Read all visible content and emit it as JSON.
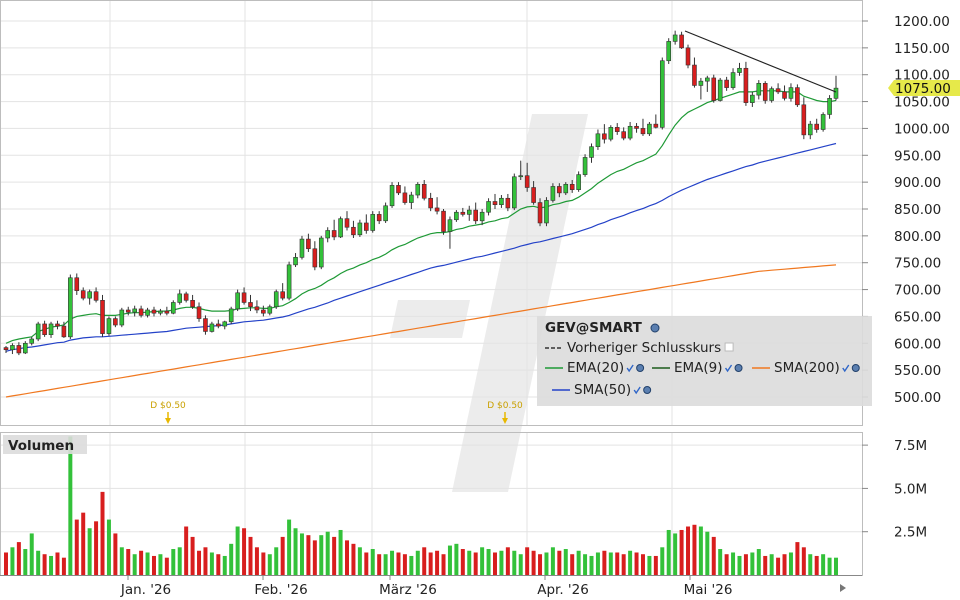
{
  "chart_data": [
    {
      "type": "candlestick",
      "title": "GEV@SMART",
      "x_axis_labels": [
        "Jan. '26",
        "Feb. '26",
        "März '26",
        "Apr. '26",
        "Mai '26"
      ],
      "y_ticks": [
        "1200.00",
        "1150.00",
        "1100.00",
        "1050.00",
        "1000.00",
        "950.00",
        "900.00",
        "850.00",
        "800.00",
        "750.00",
        "700.00",
        "650.00",
        "600.00",
        "550.00",
        "500.00"
      ],
      "y_range": [
        475,
        1215
      ],
      "last_price": "1075.00",
      "legend_placement": "bottom-right",
      "legend": [
        {
          "label": "Vorheriger Schlusskurs",
          "style": "dashed",
          "color": "#333333"
        },
        {
          "label": "EMA(20)",
          "color": "#1f9a36"
        },
        {
          "label": "EMA(9)",
          "color": "#1c5b1c"
        },
        {
          "label": "SMA(200)",
          "color": "#f07820"
        },
        {
          "label": "SMA(50)",
          "color": "#2442c8"
        }
      ],
      "dividends": [
        {
          "label": "D $0.50",
          "date": "Jan. '26"
        },
        {
          "label": "D $0.50",
          "date": "März '26"
        }
      ],
      "trendline_points": [
        [
          1185,
          1070
        ]
      ],
      "candles": [
        [
          592,
          595,
          582,
          588
        ],
        [
          588,
          600,
          580,
          596
        ],
        [
          596,
          602,
          578,
          582
        ],
        [
          582,
          604,
          580,
          600
        ],
        [
          600,
          612,
          596,
          608
        ],
        [
          608,
          640,
          604,
          636
        ],
        [
          636,
          642,
          612,
          616
        ],
        [
          616,
          640,
          610,
          636
        ],
        [
          636,
          642,
          626,
          632
        ],
        [
          632,
          640,
          610,
          612
        ],
        [
          612,
          728,
          608,
          722
        ],
        [
          722,
          730,
          690,
          698
        ],
        [
          698,
          704,
          680,
          684
        ],
        [
          684,
          700,
          672,
          696
        ],
        [
          696,
          704,
          676,
          680
        ],
        [
          680,
          690,
          612,
          618
        ],
        [
          618,
          650,
          614,
          646
        ],
        [
          646,
          650,
          630,
          634
        ],
        [
          634,
          666,
          630,
          662
        ],
        [
          662,
          668,
          652,
          658
        ],
        [
          658,
          670,
          650,
          664
        ],
        [
          664,
          670,
          648,
          652
        ],
        [
          652,
          666,
          648,
          662
        ],
        [
          662,
          668,
          650,
          656
        ],
        [
          656,
          664,
          652,
          660
        ],
        [
          660,
          668,
          652,
          656
        ],
        [
          656,
          680,
          654,
          676
        ],
        [
          676,
          700,
          672,
          692
        ],
        [
          692,
          696,
          676,
          680
        ],
        [
          680,
          690,
          664,
          668
        ],
        [
          668,
          676,
          640,
          646
        ],
        [
          646,
          652,
          616,
          622
        ],
        [
          622,
          640,
          620,
          636
        ],
        [
          636,
          644,
          628,
          632
        ],
        [
          632,
          642,
          626,
          640
        ],
        [
          640,
          668,
          636,
          664
        ],
        [
          664,
          700,
          660,
          694
        ],
        [
          694,
          704,
          672,
          676
        ],
        [
          676,
          690,
          660,
          668
        ],
        [
          668,
          680,
          656,
          662
        ],
        [
          662,
          670,
          650,
          656
        ],
        [
          656,
          672,
          652,
          668
        ],
        [
          668,
          700,
          664,
          696
        ],
        [
          696,
          712,
          680,
          684
        ],
        [
          684,
          752,
          680,
          746
        ],
        [
          746,
          768,
          742,
          760
        ],
        [
          760,
          800,
          756,
          794
        ],
        [
          794,
          804,
          770,
          776
        ],
        [
          776,
          790,
          736,
          742
        ],
        [
          742,
          800,
          738,
          796
        ],
        [
          796,
          816,
          788,
          810
        ],
        [
          810,
          830,
          792,
          798
        ],
        [
          798,
          836,
          796,
          832
        ],
        [
          832,
          846,
          810,
          816
        ],
        [
          816,
          828,
          796,
          802
        ],
        [
          802,
          830,
          798,
          824
        ],
        [
          824,
          840,
          804,
          810
        ],
        [
          810,
          846,
          806,
          840
        ],
        [
          840,
          846,
          822,
          828
        ],
        [
          828,
          862,
          824,
          856
        ],
        [
          856,
          900,
          852,
          894
        ],
        [
          894,
          900,
          876,
          880
        ],
        [
          880,
          892,
          858,
          862
        ],
        [
          862,
          882,
          850,
          876
        ],
        [
          876,
          900,
          870,
          896
        ],
        [
          896,
          904,
          866,
          870
        ],
        [
          870,
          880,
          846,
          852
        ],
        [
          852,
          872,
          840,
          846
        ],
        [
          846,
          850,
          802,
          808
        ],
        [
          808,
          836,
          776,
          830
        ],
        [
          830,
          848,
          826,
          844
        ],
        [
          844,
          852,
          836,
          840
        ],
        [
          840,
          856,
          828,
          848
        ],
        [
          848,
          862,
          822,
          828
        ],
        [
          828,
          850,
          820,
          844
        ],
        [
          844,
          870,
          838,
          864
        ],
        [
          864,
          878,
          850,
          858
        ],
        [
          858,
          876,
          852,
          870
        ],
        [
          870,
          878,
          846,
          852
        ],
        [
          852,
          916,
          848,
          910
        ],
        [
          910,
          940,
          904,
          912
        ],
        [
          912,
          936,
          882,
          890
        ],
        [
          890,
          902,
          858,
          862
        ],
        [
          862,
          870,
          818,
          824
        ],
        [
          824,
          872,
          818,
          866
        ],
        [
          866,
          898,
          862,
          892
        ],
        [
          892,
          898,
          872,
          880
        ],
        [
          880,
          900,
          876,
          896
        ],
        [
          896,
          904,
          880,
          886
        ],
        [
          886,
          920,
          882,
          914
        ],
        [
          914,
          952,
          910,
          946
        ],
        [
          946,
          972,
          936,
          966
        ],
        [
          966,
          998,
          960,
          990
        ],
        [
          990,
          1008,
          972,
          980
        ],
        [
          980,
          1006,
          976,
          1002
        ],
        [
          1002,
          1010,
          988,
          994
        ],
        [
          994,
          1002,
          978,
          982
        ],
        [
          982,
          1012,
          978,
          1004
        ],
        [
          1004,
          1010,
          992,
          1000
        ],
        [
          1000,
          1018,
          986,
          990
        ],
        [
          990,
          1012,
          986,
          1008
        ],
        [
          1008,
          1026,
          1000,
          1002
        ],
        [
          1002,
          1132,
          998,
          1126
        ],
        [
          1126,
          1168,
          1120,
          1162
        ],
        [
          1162,
          1182,
          1156,
          1174
        ],
        [
          1174,
          1180,
          1148,
          1150
        ],
        [
          1150,
          1156,
          1112,
          1118
        ],
        [
          1118,
          1132,
          1076,
          1080
        ],
        [
          1080,
          1094,
          1054,
          1088
        ],
        [
          1088,
          1098,
          1068,
          1094
        ],
        [
          1094,
          1100,
          1048,
          1052
        ],
        [
          1052,
          1094,
          1050,
          1090
        ],
        [
          1090,
          1096,
          1070,
          1076
        ],
        [
          1076,
          1112,
          1072,
          1104
        ],
        [
          1104,
          1122,
          1098,
          1112
        ],
        [
          1112,
          1124,
          1042,
          1048
        ],
        [
          1048,
          1068,
          1040,
          1062
        ],
        [
          1062,
          1090,
          1054,
          1084
        ],
        [
          1084,
          1088,
          1046,
          1052
        ],
        [
          1052,
          1078,
          1048,
          1074
        ],
        [
          1074,
          1084,
          1064,
          1068
        ],
        [
          1068,
          1080,
          1052,
          1056
        ],
        [
          1056,
          1084,
          1050,
          1076
        ],
        [
          1076,
          1082,
          1040,
          1044
        ],
        [
          1044,
          1058,
          980,
          988
        ],
        [
          988,
          1014,
          980,
          1008
        ],
        [
          1008,
          1018,
          992,
          998
        ],
        [
          998,
          1030,
          994,
          1026
        ],
        [
          1026,
          1062,
          1018,
          1056
        ],
        [
          1056,
          1098,
          1052,
          1075
        ]
      ],
      "ema20": [
        600,
        605,
        608,
        610,
        612,
        622,
        626,
        630,
        632,
        634,
        645,
        650,
        652,
        654,
        655,
        652,
        652,
        652,
        654,
        656,
        657,
        657,
        658,
        659,
        660,
        660,
        662,
        665,
        667,
        667,
        665,
        662,
        660,
        660,
        660,
        661,
        664,
        665,
        666,
        666,
        665,
        665,
        668,
        670,
        676,
        683,
        692,
        698,
        702,
        708,
        716,
        722,
        730,
        736,
        740,
        746,
        750,
        756,
        760,
        766,
        774,
        780,
        784,
        790,
        796,
        800,
        804,
        806,
        806,
        808,
        812,
        814,
        818,
        820,
        822,
        826,
        828,
        832,
        834,
        842,
        850,
        854,
        855,
        852,
        854,
        858,
        860,
        864,
        866,
        872,
        880,
        888,
        898,
        906,
        914,
        920,
        924,
        930,
        936,
        940,
        946,
        952,
        968,
        988,
        1006,
        1020,
        1030,
        1036,
        1042,
        1048,
        1052,
        1056,
        1060,
        1064,
        1068,
        1068,
        1068,
        1070,
        1070,
        1070,
        1070,
        1068,
        1068,
        1068,
        1060,
        1056,
        1052,
        1050,
        1050,
        1052
      ],
      "sma50": [
        585,
        588,
        590,
        592,
        593,
        595,
        597,
        599,
        601,
        602,
        606,
        608,
        610,
        611,
        612,
        612,
        613,
        614,
        615,
        616,
        617,
        618,
        619,
        620,
        621,
        622,
        624,
        626,
        628,
        629,
        630,
        631,
        632,
        633,
        634,
        636,
        638,
        640,
        641,
        642,
        643,
        645,
        647,
        649,
        652,
        656,
        660,
        664,
        667,
        671,
        675,
        680,
        684,
        688,
        692,
        696,
        700,
        704,
        708,
        712,
        716,
        720,
        724,
        728,
        732,
        736,
        740,
        743,
        745,
        748,
        751,
        754,
        757,
        760,
        762,
        765,
        768,
        771,
        774,
        777,
        781,
        784,
        787,
        789,
        792,
        795,
        798,
        801,
        804,
        808,
        812,
        816,
        821,
        825,
        830,
        834,
        838,
        843,
        847,
        851,
        856,
        860,
        866,
        873,
        879,
        885,
        890,
        895,
        900,
        905,
        909,
        913,
        917,
        921,
        925,
        929,
        932,
        936,
        939,
        942,
        945,
        948,
        951,
        954,
        957,
        960,
        963,
        966,
        969,
        972
      ],
      "sma200": [
        500,
        502,
        504,
        506,
        508,
        510,
        512,
        514,
        516,
        518,
        520,
        522,
        524,
        526,
        528,
        530,
        532,
        534,
        536,
        538,
        540,
        542,
        544,
        546,
        548,
        550,
        552,
        554,
        556,
        558,
        560,
        562,
        564,
        566,
        568,
        570,
        572,
        574,
        576,
        578,
        580,
        582,
        584,
        586,
        588,
        590,
        592,
        594,
        596,
        598,
        600,
        602,
        604,
        606,
        608,
        610,
        612,
        614,
        616,
        618,
        620,
        622,
        624,
        626,
        628,
        630,
        632,
        634,
        636,
        638,
        640,
        642,
        644,
        646,
        648,
        650,
        652,
        654,
        656,
        658,
        660,
        662,
        664,
        666,
        668,
        670,
        672,
        674,
        676,
        678,
        680,
        682,
        684,
        686,
        688,
        690,
        692,
        694,
        696,
        698,
        700,
        702,
        704,
        706,
        708,
        710,
        712,
        714,
        716,
        718,
        720,
        722,
        724,
        726,
        728,
        730,
        732,
        734,
        735,
        736,
        737,
        738,
        739,
        740,
        741,
        742,
        743,
        744,
        745,
        746
      ]
    },
    {
      "type": "bar",
      "title": "Volumen",
      "y_ticks": [
        "7.5M",
        "5.0M",
        "2.5M"
      ],
      "y_range": [
        0,
        8.2
      ],
      "values": [
        1.3,
        1.6,
        1.9,
        1.5,
        2.4,
        1.4,
        1.2,
        1.1,
        1.3,
        1.0,
        8.0,
        3.2,
        3.6,
        2.7,
        3.1,
        4.8,
        3.2,
        2.4,
        1.6,
        1.5,
        1.2,
        1.4,
        1.3,
        1.1,
        1.2,
        1.0,
        1.5,
        1.6,
        2.8,
        2.2,
        1.4,
        1.6,
        1.3,
        1.2,
        1.1,
        1.8,
        2.8,
        2.7,
        2.2,
        1.6,
        1.3,
        1.2,
        1.6,
        2.2,
        3.2,
        2.7,
        2.4,
        2.3,
        2.0,
        2.3,
        2.5,
        2.2,
        2.6,
        2.0,
        1.8,
        1.6,
        1.3,
        1.5,
        1.2,
        1.2,
        1.4,
        1.3,
        1.2,
        1.1,
        1.4,
        1.6,
        1.3,
        1.4,
        1.2,
        1.7,
        1.8,
        1.5,
        1.4,
        1.3,
        1.6,
        1.5,
        1.3,
        1.4,
        1.6,
        1.4,
        1.2,
        1.6,
        1.4,
        1.2,
        1.3,
        1.6,
        1.4,
        1.5,
        1.2,
        1.4,
        1.2,
        1.1,
        1.3,
        1.4,
        1.3,
        1.3,
        1.2,
        1.4,
        1.3,
        1.2,
        1.1,
        1.1,
        1.6,
        2.6,
        2.4,
        2.6,
        2.8,
        2.9,
        2.8,
        2.5,
        2.2,
        1.5,
        1.2,
        1.3,
        1.1,
        1.2,
        1.3,
        1.5,
        1.1,
        1.2,
        1.0,
        1.2,
        1.3,
        1.9,
        1.6,
        1.2,
        1.1,
        1.2,
        1.0,
        1.0
      ]
    }
  ]
}
